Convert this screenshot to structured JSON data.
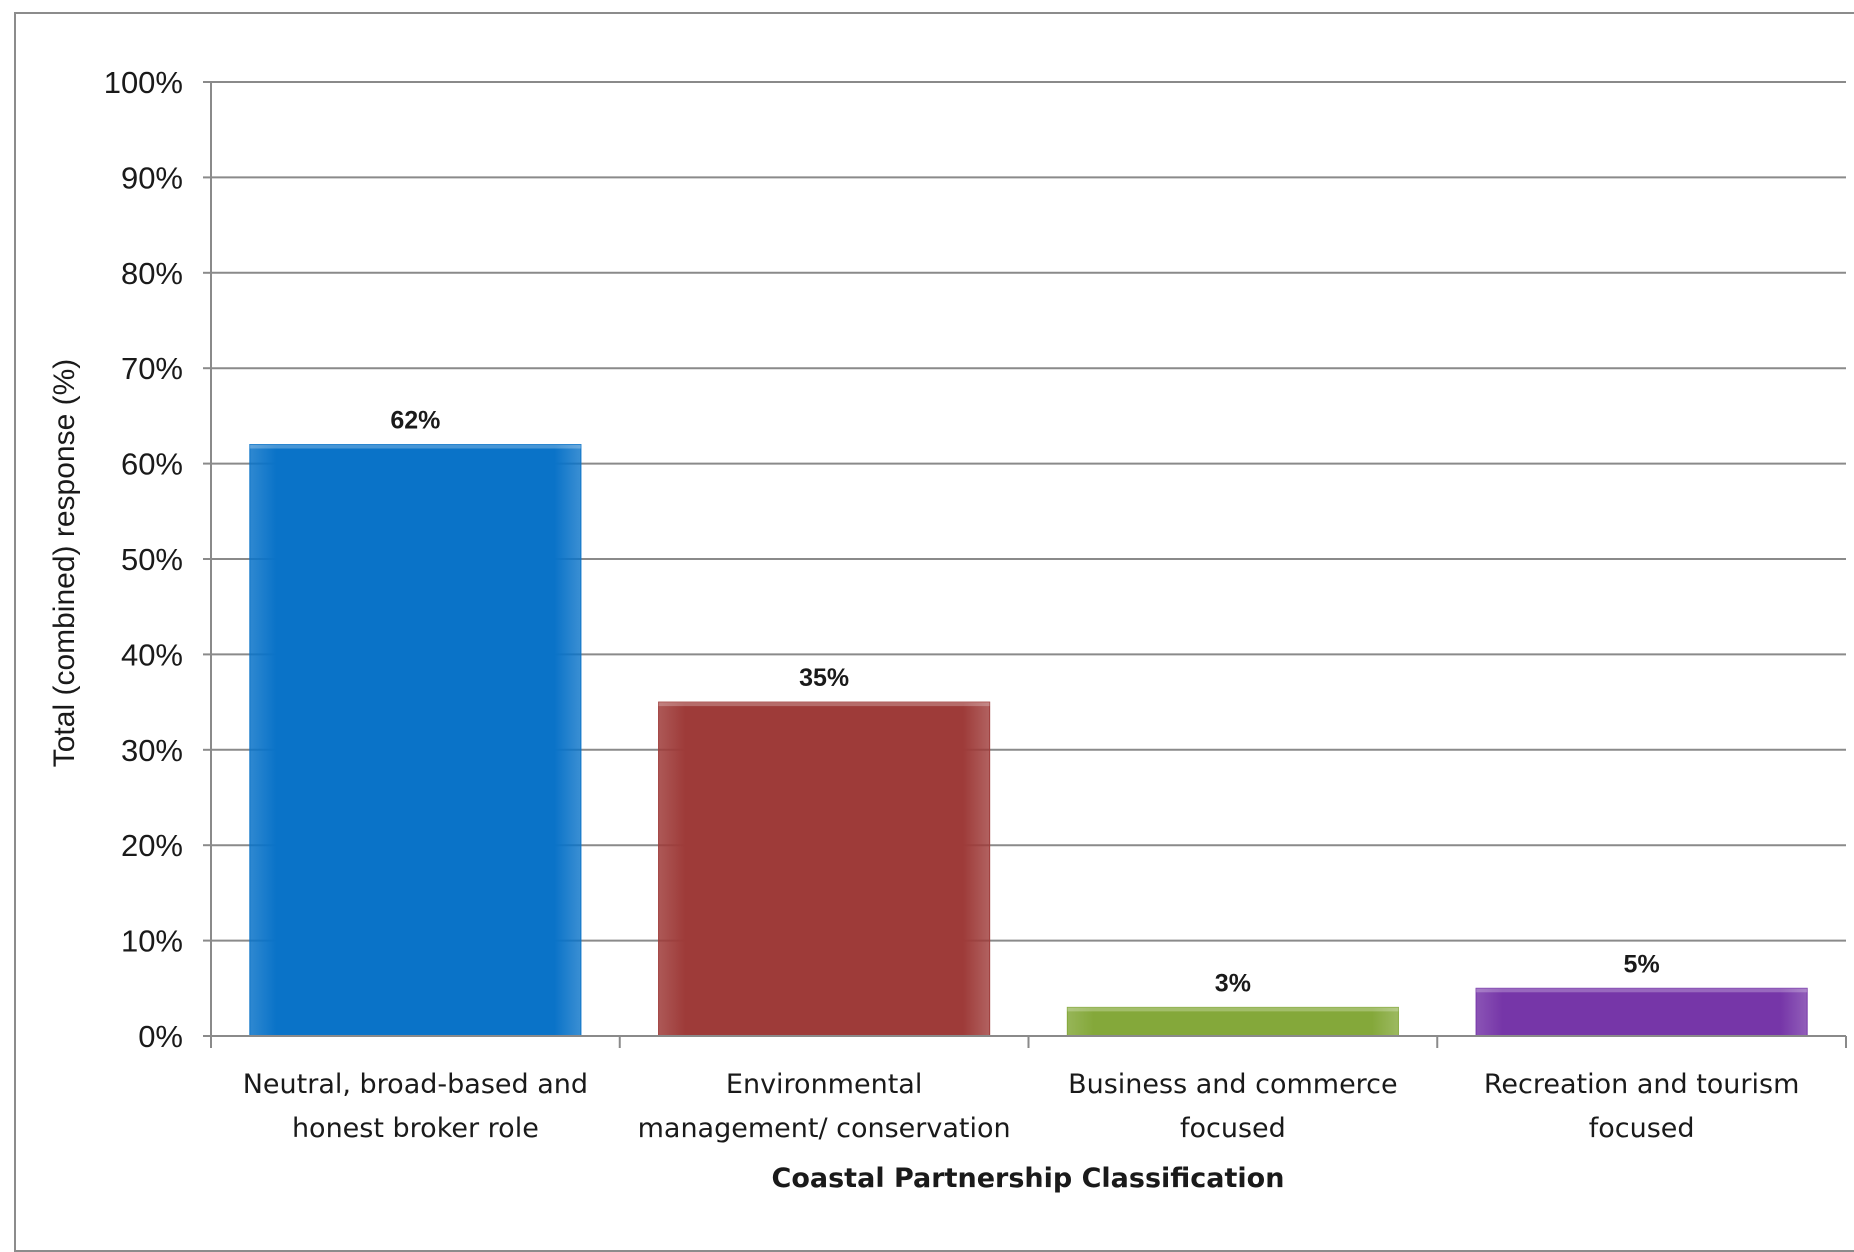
{
  "chart_data": {
    "type": "bar",
    "title": "",
    "xlabel": "Coastal Partnership Classification",
    "ylabel": "Total (combined) response (%)",
    "ylim": [
      0,
      100
    ],
    "ytick_step": 10,
    "ytick_suffix": "%",
    "grid": true,
    "legend": "none",
    "categories": [
      [
        "Neutral, broad-based and",
        "honest broker role"
      ],
      [
        "Environmental",
        "management/ conservation"
      ],
      [
        "Business and commerce",
        "focused"
      ],
      [
        "Recreation and tourism",
        "focused"
      ]
    ],
    "values": [
      62,
      35,
      3,
      5
    ],
    "data_labels": [
      "62%",
      "35%",
      "3%",
      "5%"
    ],
    "colors": [
      "#0a73c8",
      "#9e3b39",
      "#84a83a",
      "#7636a8"
    ]
  }
}
